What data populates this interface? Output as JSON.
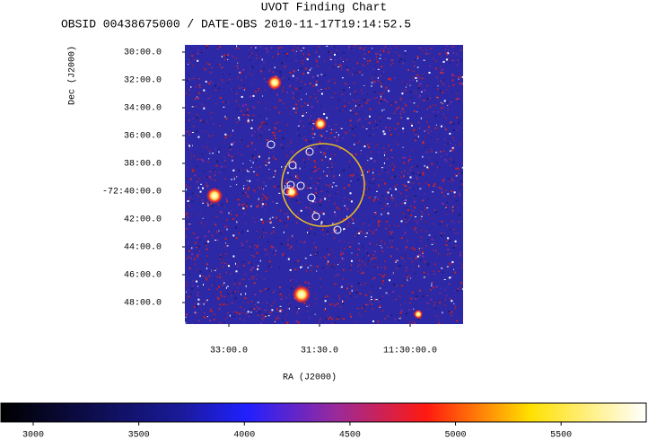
{
  "chart_data": {
    "type": "image",
    "title": "UVOT Finding Chart",
    "subtitle": "OBSID 00438675000 / DATE-OBS 2010-11-17T19:14:52.5",
    "x_label": "RA (J2000)",
    "y_label": "Dec (J2000)",
    "xlim": [
      173.432,
      172.281
    ],
    "xticks": [
      {
        "value": 173.25,
        "label": "33:00.0"
      },
      {
        "value": 172.875,
        "label": "31:30.0"
      },
      {
        "value": 172.5,
        "label": "11:30:00.0"
      }
    ],
    "ylim": [
      -72.8258,
      -72.4914
    ],
    "yticks": [
      {
        "value": -72.5,
        "label": "30:00.0"
      },
      {
        "value": -72.53333,
        "label": "32:00.0"
      },
      {
        "value": -72.56667,
        "label": "34:00.0"
      },
      {
        "value": -72.6,
        "label": "36:00.0"
      },
      {
        "value": -72.63333,
        "label": "38:00.0"
      },
      {
        "value": -72.66667,
        "label": "-72:40:00.0"
      },
      {
        "value": -72.7,
        "label": "42:00.0"
      },
      {
        "value": -72.73333,
        "label": "44:00.0"
      },
      {
        "value": -72.76667,
        "label": "46:00.0"
      },
      {
        "value": -72.8,
        "label": "48:00.0"
      }
    ],
    "clim": [
      2847,
      5903
    ],
    "cticks": [
      3000,
      3500,
      4000,
      4500,
      5000,
      5500
    ]
  }
}
